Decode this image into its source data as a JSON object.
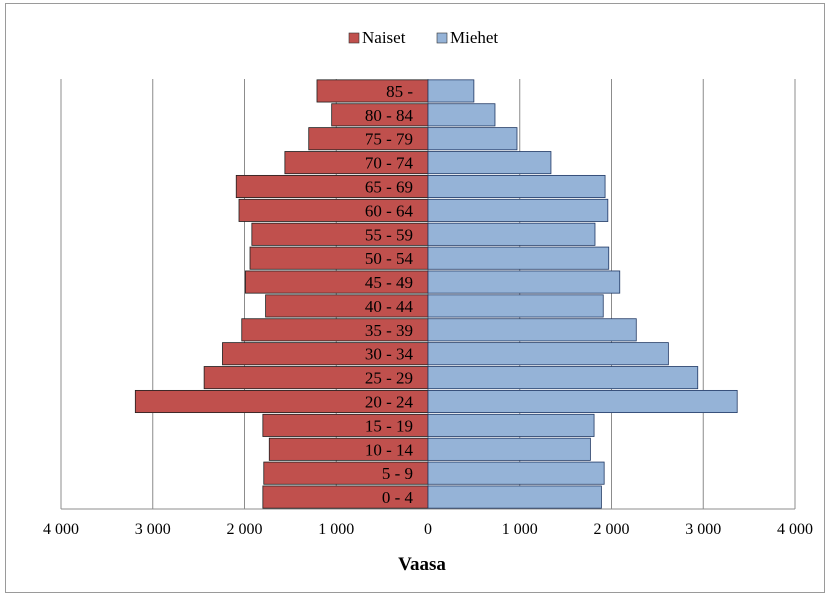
{
  "chart_data": {
    "type": "bar",
    "orientation": "horizontal",
    "layout": "population-pyramid",
    "title": "",
    "xlabel": "Vaasa",
    "ylabel": "",
    "xlim": [
      -4000,
      4000
    ],
    "x_ticks": [
      -4000,
      -3000,
      -2000,
      -1000,
      0,
      1000,
      2000,
      3000,
      4000
    ],
    "x_tick_labels": [
      "4 000",
      "3 000",
      "2 000",
      "1 000",
      "0",
      "1 000",
      "2 000",
      "3 000",
      "4 000"
    ],
    "grid": "vertical",
    "legend_position": "top",
    "categories": [
      "0 - 4",
      "5 - 9",
      "10 - 14",
      "15 - 19",
      "20 - 24",
      "25 - 29",
      "30 - 34",
      "35 - 39",
      "40 - 44",
      "45 - 49",
      "50 - 54",
      "55 - 59",
      "60 - 64",
      "65 - 69",
      "70 - 74",
      "75 - 79",
      "80 - 84",
      "85 -"
    ],
    "series": [
      {
        "name": "Naiset",
        "color": "#c0504d",
        "side": "left",
        "values": [
          1800,
          1790,
          1730,
          1800,
          3190,
          2440,
          2240,
          2030,
          1770,
          1990,
          1940,
          1920,
          2060,
          2090,
          1560,
          1300,
          1050,
          1210
        ]
      },
      {
        "name": "Miehet",
        "color": "#95b3d7",
        "side": "right",
        "values": [
          1890,
          1920,
          1770,
          1810,
          3370,
          2940,
          2620,
          2270,
          1910,
          2090,
          1970,
          1820,
          1960,
          1930,
          1340,
          970,
          730,
          500
        ]
      }
    ]
  }
}
